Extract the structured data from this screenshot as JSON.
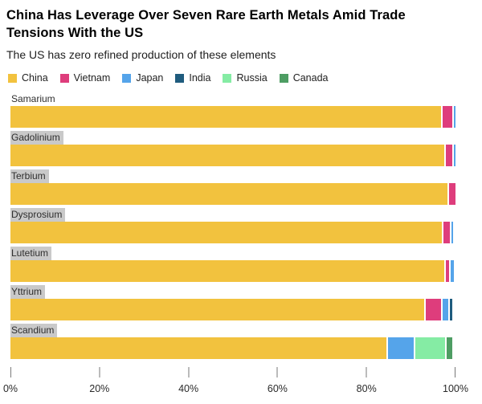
{
  "chart_data": {
    "type": "bar",
    "orientation": "horizontal",
    "stacked": true,
    "title": "China Has Leverage Over Seven Rare Earth Metals Amid Trade Tensions With the US",
    "subtitle": "The US has zero refined production of these elements",
    "unit": "percent",
    "xlim": [
      0,
      100
    ],
    "grid": false,
    "legend_position": "top",
    "label_highlight_color": "#c9c9c9",
    "legend": [
      {
        "name": "China",
        "color": "#f2c23e"
      },
      {
        "name": "Vietnam",
        "color": "#de3d7c"
      },
      {
        "name": "Japan",
        "color": "#55a4ea"
      },
      {
        "name": "India",
        "color": "#1f5c7e"
      },
      {
        "name": "Russia",
        "color": "#85eca4"
      },
      {
        "name": "Canada",
        "color": "#4e9d63"
      }
    ],
    "rows": [
      {
        "category": "Samarium",
        "highlight": false,
        "segments": [
          {
            "name": "China",
            "value": 96.8
          },
          {
            "name": "Vietnam",
            "value": 2.4
          },
          {
            "name": "Japan",
            "value": 0.8
          }
        ]
      },
      {
        "category": "Gadolinium",
        "highlight": true,
        "segments": [
          {
            "name": "China",
            "value": 97.5
          },
          {
            "name": "Vietnam",
            "value": 1.7
          },
          {
            "name": "Japan",
            "value": 0.8
          }
        ]
      },
      {
        "category": "Terbium",
        "highlight": true,
        "segments": [
          {
            "name": "China",
            "value": 98.2
          },
          {
            "name": "Vietnam",
            "value": 1.8
          }
        ]
      },
      {
        "category": "Dysprosium",
        "highlight": true,
        "segments": [
          {
            "name": "China",
            "value": 97.0
          },
          {
            "name": "Vietnam",
            "value": 1.8
          },
          {
            "name": "Japan",
            "value": 0.7
          }
        ]
      },
      {
        "category": "Lutetium",
        "highlight": true,
        "segments": [
          {
            "name": "China",
            "value": 97.5
          },
          {
            "name": "Vietnam",
            "value": 1.0
          },
          {
            "name": "Japan",
            "value": 1.2
          }
        ]
      },
      {
        "category": "Yttrium",
        "highlight": true,
        "segments": [
          {
            "name": "China",
            "value": 93.0
          },
          {
            "name": "Vietnam",
            "value": 3.8
          },
          {
            "name": "Japan",
            "value": 1.6
          },
          {
            "name": "India",
            "value": 0.8
          }
        ]
      },
      {
        "category": "Scandium",
        "highlight": true,
        "segments": [
          {
            "name": "China",
            "value": 84.4
          },
          {
            "name": "Japan",
            "value": 6.3
          },
          {
            "name": "Russia",
            "value": 7.0
          },
          {
            "name": "Canada",
            "value": 1.5
          }
        ]
      }
    ],
    "x_axis": {
      "ticks": [
        {
          "value": 0,
          "label": "0%"
        },
        {
          "value": 20,
          "label": "20%"
        },
        {
          "value": 40,
          "label": "40%"
        },
        {
          "value": 60,
          "label": "60%"
        },
        {
          "value": 80,
          "label": "80%"
        },
        {
          "value": 100,
          "label": "100%"
        }
      ]
    }
  }
}
